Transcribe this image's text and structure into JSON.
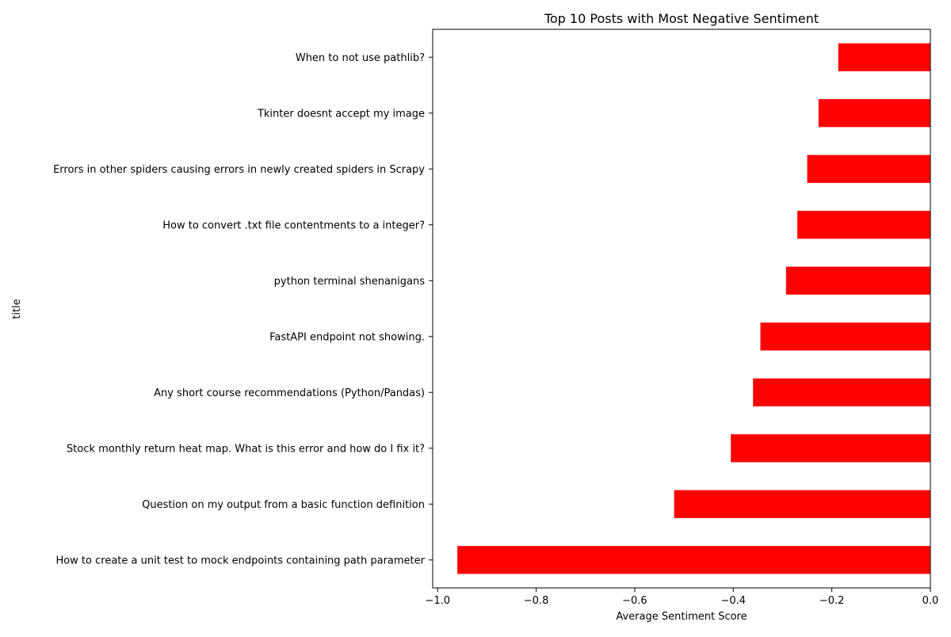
{
  "chart_data": {
    "type": "bar",
    "orientation": "horizontal",
    "title": "Top 10 Posts with Most Negative Sentiment",
    "xlabel": "Average Sentiment Score",
    "ylabel": "title",
    "xlim": [
      -1.01,
      0.0
    ],
    "xticks": [
      -1.0,
      -0.8,
      -0.6,
      -0.4,
      -0.2,
      0.0
    ],
    "xtick_labels": [
      "−1.0",
      "−0.8",
      "−0.6",
      "−0.4",
      "−0.2",
      "0.0"
    ],
    "bar_color": "#ff0000",
    "grid": false,
    "legend": "none",
    "categories": [
      "How to create a unit test to mock endpoints containing path parameter",
      "Question on my output from a basic function definition",
      "Stock monthly return heat map. What is this error and how do I fix it?",
      "Any short course recommendations (Python/Pandas)",
      "FastAPI endpoint not showing.",
      "python terminal shenanigans",
      "How to convert .txt file contentments to a integer?",
      "Errors in other spiders causing errors in newly created spiders in Scrapy",
      "Tkinter doesnt accept my image",
      "When to not use pathlib?"
    ],
    "values": [
      -0.96,
      -0.52,
      -0.405,
      -0.36,
      -0.345,
      -0.293,
      -0.27,
      -0.25,
      -0.227,
      -0.187
    ]
  }
}
